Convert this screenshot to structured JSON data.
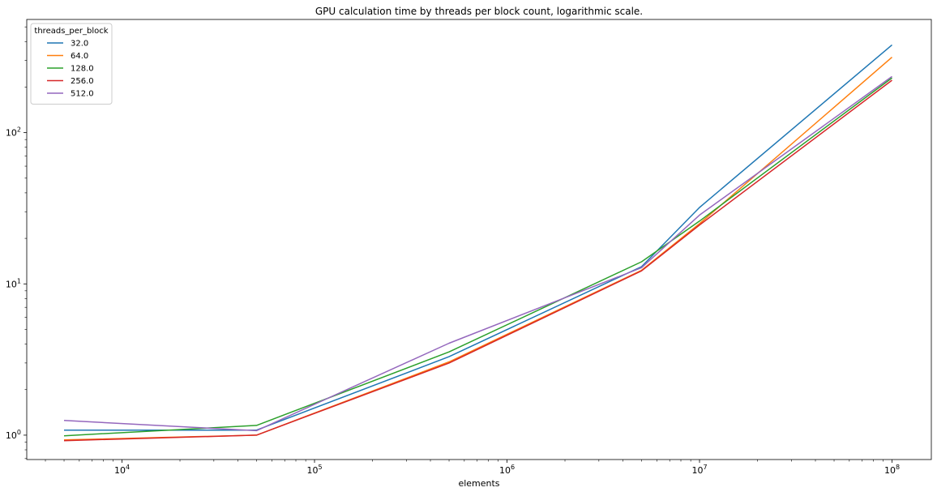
{
  "chart_data": {
    "type": "line",
    "title": "GPU calculation time by threads per block count, logarithmic scale.",
    "xlabel": "elements",
    "ylabel": "",
    "x_scale": "log",
    "y_scale": "log",
    "xlim": [
      3200,
      160000000
    ],
    "ylim": [
      0.69,
      560
    ],
    "x_ticks": [
      {
        "value": 10000,
        "base": "10",
        "exp": "4"
      },
      {
        "value": 100000,
        "base": "10",
        "exp": "5"
      },
      {
        "value": 1000000,
        "base": "10",
        "exp": "6"
      },
      {
        "value": 10000000,
        "base": "10",
        "exp": "7"
      },
      {
        "value": 100000000,
        "base": "10",
        "exp": "8"
      }
    ],
    "y_ticks": [
      {
        "value": 1,
        "base": "10",
        "exp": "0"
      },
      {
        "value": 10,
        "base": "10",
        "exp": "1"
      },
      {
        "value": 100,
        "base": "10",
        "exp": "2"
      }
    ],
    "grid": false,
    "legend": {
      "title": "threads_per_block",
      "position": "top-left"
    },
    "x": [
      5000,
      50000,
      500000,
      5000000,
      10000000,
      100000000
    ],
    "series": [
      {
        "name": "32.0",
        "color": "#1f77b4",
        "values": [
          1.08,
          1.08,
          3.3,
          13.0,
          32.0,
          380.0
        ]
      },
      {
        "name": "64.0",
        "color": "#ff7f0e",
        "values": [
          0.93,
          1.0,
          3.05,
          12.3,
          25.0,
          315.0
        ]
      },
      {
        "name": "128.0",
        "color": "#2ca02c",
        "values": [
          0.99,
          1.16,
          3.55,
          14.0,
          26.0,
          230.0
        ]
      },
      {
        "name": "256.0",
        "color": "#d62728",
        "values": [
          0.92,
          1.0,
          3.0,
          12.2,
          24.5,
          222.0
        ]
      },
      {
        "name": "512.0",
        "color": "#9467bd",
        "values": [
          1.25,
          1.07,
          4.05,
          12.8,
          28.5,
          235.0
        ]
      }
    ]
  }
}
